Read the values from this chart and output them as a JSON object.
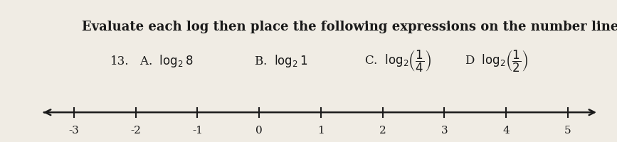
{
  "title": "Evaluate each log then place the following expressions on the number line.",
  "problem_number": "13.",
  "expressions": [
    {
      "label": "A.",
      "text": "log$_2$8"
    },
    {
      "label": "B.",
      "text": "log$_2$1"
    },
    {
      "label": "C.",
      "text": "log$_2$($\\frac{1}{4}$)"
    },
    {
      "label": "D",
      "text": "log$_2$($\\frac{1}{2}$)"
    }
  ],
  "number_line": {
    "xmin": -3,
    "xmax": 5,
    "ticks": [
      -3,
      -2,
      -1,
      0,
      1,
      2,
      3,
      4,
      5
    ]
  },
  "background_color": "#f0ece4",
  "text_color": "#1a1a1a",
  "title_fontsize": 13,
  "label_fontsize": 12,
  "tick_fontsize": 11
}
